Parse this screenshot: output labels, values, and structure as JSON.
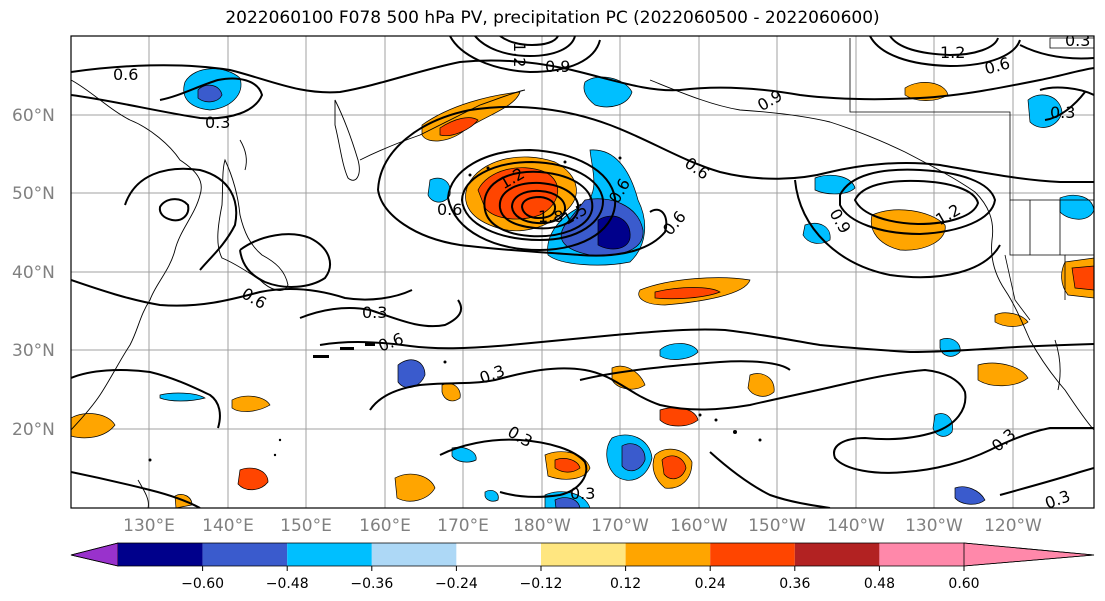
{
  "title": "2022060100 F078 500 hPa PV, precipitation PC (2022060500 - 2022060600)",
  "lat_labels": [
    "60°N",
    "50°N",
    "40°N",
    "30°N",
    "20°N"
  ],
  "lon_labels": [
    "130°E",
    "140°E",
    "150°E",
    "160°E",
    "170°E",
    "180°W",
    "170°W",
    "160°W",
    "150°W",
    "140°W",
    "130°W",
    "120°W"
  ],
  "colorbar": {
    "ticks": [
      "−0.60",
      "−0.48",
      "−0.36",
      "−0.24",
      "−0.12",
      "0.12",
      "0.24",
      "0.36",
      "0.48",
      "0.60"
    ],
    "colors": [
      "#9932cc",
      "#00008b",
      "#3a5bcd",
      "#00bfff",
      "#add8f6",
      "#ffffff",
      "#ffe680",
      "#ffa500",
      "#ff4500",
      "#b22222",
      "#ff88aa"
    ]
  },
  "contour_labels": [
    "0.6",
    "0.3",
    "0.6",
    "0.6",
    "0.3",
    "0.6",
    "0.3",
    "0.3",
    "0.3",
    "0.3",
    "0.3",
    "0.6",
    "0.6",
    "0.9",
    "1.2",
    "1.2",
    "1.5",
    "1.8",
    "0.9",
    "1.2",
    "0.6",
    "0.3",
    "0.9",
    "1.2",
    "0.6",
    "0.3"
  ]
}
